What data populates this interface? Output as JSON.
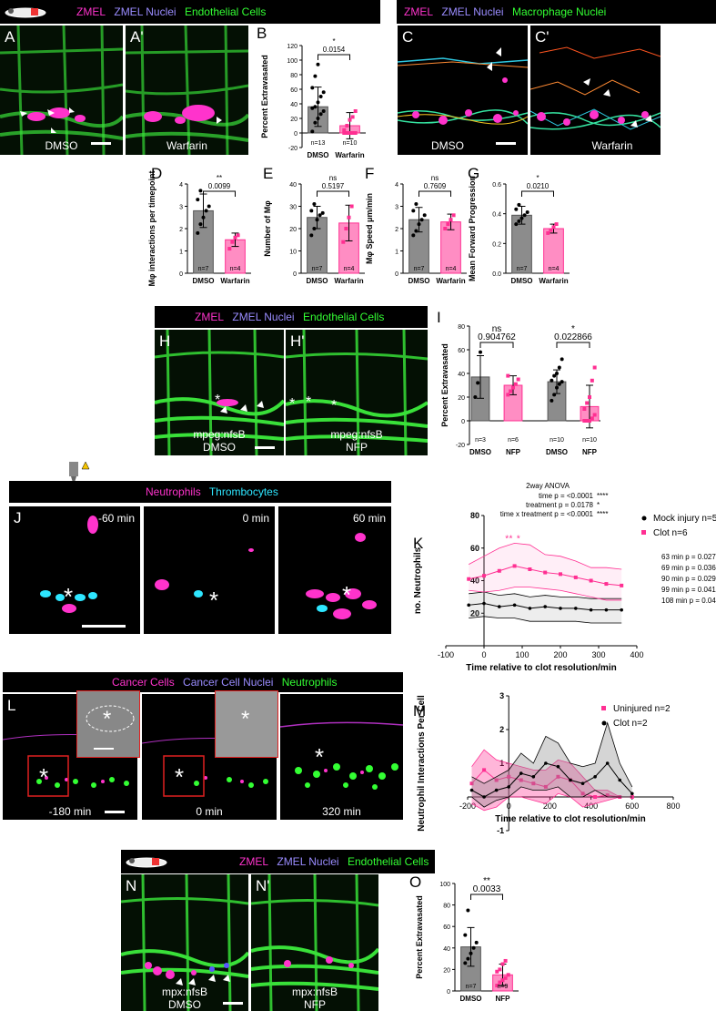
{
  "colors": {
    "grey_bar": "#8c8c8c",
    "pink": "#ff2f92",
    "green_signal": "#33ff33",
    "magenta_signal": "#ff33cc",
    "cyan_signal": "#2ee6ff"
  },
  "icons": [
    "zebrafish-larva-icon",
    "laser-ablation-icon",
    "arrowhead-icon",
    "asterisk-icon",
    "scale-bar-icon"
  ],
  "headers": {
    "top_left": {
      "zmel": "ZMEL",
      "nuclei": "ZMEL Nuclei",
      "cells": "Endothelial Cells"
    },
    "top_right": {
      "zmel": "ZMEL",
      "nuclei": "ZMEL Nuclei",
      "cells": "Macrophage Nuclei"
    },
    "middle": {
      "zmel": "ZMEL",
      "nuclei": "ZMEL Nuclei",
      "cells": "Endothelial Cells"
    },
    "clot": {
      "neutrophils": "Neutrophils",
      "thrombocytes": "Thrombocytes"
    },
    "cancer": {
      "cancer_cells": "Cancer Cells",
      "nuclei": "Cancer Cell Nuclei",
      "neutrophils": "Neutrophils"
    },
    "bottom": {
      "zmel": "ZMEL",
      "nuclei": "ZMEL Nuclei",
      "cells": "Endothelial Cells"
    }
  },
  "panels": {
    "A": {
      "letter": "A",
      "label": "DMSO"
    },
    "A2": {
      "letter": "A'",
      "label": "Warfarin"
    },
    "C": {
      "letter": "C",
      "label": "DMSO"
    },
    "C2": {
      "letter": "C'",
      "label": "Warfarin"
    },
    "H": {
      "letter": "H",
      "label1": "mpeg:nfsB",
      "label2": "DMSO"
    },
    "H2": {
      "letter": "H'",
      "label1": "mpeg:nfsB",
      "label2": "NFP"
    },
    "J1": {
      "letter": "J",
      "time": "-60 min"
    },
    "J2": {
      "time": "0 min"
    },
    "J3": {
      "time": "60 min"
    },
    "L1": {
      "letter": "L",
      "time": "-180 min"
    },
    "L2": {
      "time": "0 min"
    },
    "L3": {
      "time": "320 min"
    },
    "N": {
      "letter": "N",
      "label1": "mpx:nfsB",
      "label2": "DMSO"
    },
    "N2": {
      "letter": "N'",
      "label1": "mpx:nfsB",
      "label2": "NFP"
    }
  },
  "chart_data": [
    {
      "id": "B",
      "letter": "B",
      "type": "bar",
      "categories": [
        "DMSO",
        "Warfarin"
      ],
      "values": [
        36,
        10
      ],
      "error": [
        27,
        18
      ],
      "n_labels": [
        "n=13",
        "n=10"
      ],
      "points": [
        [
          2,
          14,
          20,
          26,
          30,
          34,
          36,
          42,
          50,
          56,
          62,
          78,
          94
        ],
        [
          0,
          0,
          0,
          0,
          0,
          4,
          10,
          18,
          22,
          30
        ]
      ],
      "ylabel": "Percent Extravasated",
      "ylim": [
        -20,
        120
      ],
      "yticks": [
        -20,
        0,
        20,
        40,
        60,
        80,
        100,
        120
      ],
      "sig": {
        "stars": "*",
        "p": "0.0154"
      }
    },
    {
      "id": "D",
      "letter": "D",
      "type": "bar",
      "categories": [
        "DMSO",
        "Warfarin"
      ],
      "values": [
        2.8,
        1.5
      ],
      "error": [
        0.75,
        0.3
      ],
      "n_labels": [
        "n=7",
        "n=4"
      ],
      "points": [
        [
          1.8,
          2.2,
          2.5,
          2.8,
          3.0,
          3.3,
          3.7
        ],
        [
          1.1,
          1.4,
          1.6,
          1.7
        ]
      ],
      "ylabel": "Mφ interactions per timepoint",
      "ylim": [
        0,
        4
      ],
      "yticks": [
        0,
        1,
        2,
        3,
        4
      ],
      "sig": {
        "stars": "**",
        "p": "0.0099"
      }
    },
    {
      "id": "E",
      "letter": "E",
      "type": "bar",
      "categories": [
        "DMSO",
        "Warfarin"
      ],
      "values": [
        25,
        22.5
      ],
      "error": [
        5,
        8
      ],
      "n_labels": [
        "n=7",
        "n=4"
      ],
      "points": [
        [
          17,
          20,
          24,
          26,
          27,
          28,
          31
        ],
        [
          14,
          20,
          25,
          30
        ]
      ],
      "ylabel": "Number of Mφ",
      "ylim": [
        0,
        40
      ],
      "yticks": [
        0,
        10,
        20,
        30,
        40
      ],
      "sig": {
        "stars": "ns",
        "p": "0.5197"
      }
    },
    {
      "id": "F",
      "letter": "F",
      "type": "bar",
      "categories": [
        "DMSO",
        "Warfarin"
      ],
      "values": [
        2.4,
        2.3
      ],
      "error": [
        0.55,
        0.35
      ],
      "n_labels": [
        "n=7",
        "n=4"
      ],
      "points": [
        [
          1.7,
          1.9,
          2.2,
          2.4,
          2.6,
          2.8,
          3.1
        ],
        [
          2.0,
          2.2,
          2.4,
          2.6
        ]
      ],
      "ylabel": "Mφ Speed μm/min",
      "ylim": [
        0,
        4
      ],
      "yticks": [
        0,
        1,
        2,
        3,
        4
      ],
      "sig": {
        "stars": "ns",
        "p": "0.7609"
      }
    },
    {
      "id": "G",
      "letter": "G",
      "type": "bar",
      "categories": [
        "DMSO",
        "Warfarin"
      ],
      "values": [
        0.39,
        0.3
      ],
      "error": [
        0.06,
        0.03
      ],
      "n_labels": [
        "n=7",
        "n=4"
      ],
      "points": [
        [
          0.33,
          0.35,
          0.37,
          0.39,
          0.41,
          0.43,
          0.46
        ],
        [
          0.27,
          0.29,
          0.31,
          0.33
        ]
      ],
      "ylabel": "Mean Forward Progression",
      "ylim": [
        0,
        0.6
      ],
      "yticks": [
        0.0,
        0.2,
        0.4,
        0.6
      ],
      "sig": {
        "stars": "*",
        "p": "0.0210"
      }
    },
    {
      "id": "I",
      "letter": "I",
      "type": "bar",
      "groups": [
        "nfsB -ve",
        "nfsB +ve"
      ],
      "categories": [
        "DMSO",
        "NFP",
        "DMSO",
        "NFP"
      ],
      "values": [
        37,
        30,
        33,
        12
      ],
      "error": [
        18,
        8,
        10,
        18
      ],
      "n_labels": [
        "n=3",
        "n=6",
        "n=10",
        "n=10"
      ],
      "points": [
        [
          20,
          32,
          58
        ],
        [
          22,
          25,
          28,
          31,
          35,
          38
        ],
        [
          17,
          22,
          28,
          31,
          33,
          34,
          38,
          40,
          45,
          52
        ],
        [
          0,
          0,
          0,
          2,
          5,
          10,
          15,
          20,
          34,
          45
        ]
      ],
      "ylabel": "Percent Extravasated",
      "ylim": [
        -20,
        80
      ],
      "yticks": [
        -20,
        0,
        20,
        40,
        60,
        80
      ],
      "sig": [
        {
          "stars": "ns",
          "p": "0.904762"
        },
        {
          "stars": "*",
          "p": "0.022866"
        }
      ]
    },
    {
      "id": "K",
      "letter": "K",
      "type": "line",
      "xlabel": "Time relative to clot resolution/min",
      "ylabel": "no. Neutrophils",
      "xlim": [
        -100,
        400
      ],
      "ylim": [
        0,
        80
      ],
      "xticks": [
        -100,
        0,
        100,
        200,
        300,
        400
      ],
      "yticks": [
        20,
        40,
        60,
        80
      ],
      "series": [
        {
          "name": "Mock injury n=5",
          "x": [
            -40,
            0,
            40,
            80,
            120,
            160,
            200,
            240,
            280,
            320,
            360
          ],
          "y": [
            25,
            26,
            24,
            25,
            23,
            24,
            23,
            23,
            22,
            22,
            22
          ],
          "lower": [
            17,
            18,
            17,
            17,
            15,
            15,
            15,
            15,
            14,
            14,
            14
          ],
          "upper": [
            32,
            33,
            31,
            32,
            30,
            31,
            30,
            30,
            29,
            29,
            29
          ]
        },
        {
          "name": "Clot n=6",
          "x": [
            -40,
            0,
            40,
            80,
            120,
            160,
            200,
            240,
            280,
            320,
            360
          ],
          "y": [
            41,
            43,
            46,
            49,
            47,
            45,
            44,
            42,
            40,
            38,
            37
          ],
          "lower": [
            34,
            33,
            34,
            36,
            36,
            35,
            34,
            32,
            30,
            28,
            28
          ],
          "upper": [
            50,
            55,
            60,
            63,
            62,
            56,
            55,
            52,
            48,
            48,
            47
          ]
        }
      ],
      "stats": {
        "title": "2way ANOVA",
        "rows": [
          {
            "text": "time p = <0.0001",
            "stars": "****"
          },
          {
            "text": "treatment p = 0.0178",
            "stars": "*"
          },
          {
            "text": "time x treatment p = <0.0001",
            "stars": "****"
          }
        ],
        "posthoc": [
          "63 min p = 0.0278",
          "69 min p = 0.0360",
          "90 min p = 0.0294",
          "99 min p = 0.0419",
          "108 min p = 0.0426"
        ]
      }
    },
    {
      "id": "M",
      "letter": "M",
      "type": "line",
      "xlabel": "Time relative to clot resolution/min",
      "ylabel": "Neutrophil Interactions Per Cell",
      "xlim": [
        -200,
        800
      ],
      "ylim": [
        -1,
        3
      ],
      "xticks": [
        -200,
        0,
        200,
        400,
        600,
        800
      ],
      "yticks": [
        -1,
        1,
        2,
        3
      ],
      "series": [
        {
          "name": "Uninjured n=2",
          "x": [
            -180,
            -120,
            -60,
            0,
            60,
            120,
            180,
            240,
            300,
            360,
            420,
            480,
            540,
            600
          ],
          "y": [
            0.4,
            0.8,
            0.5,
            0.6,
            0.5,
            0.4,
            0.3,
            0.6,
            0.5,
            0.1,
            0.0,
            0.05,
            0.0,
            0.0
          ],
          "lower": [
            -0.2,
            -0.4,
            -0.3,
            0.0,
            0.0,
            -0.1,
            -0.2,
            0.1,
            0.0,
            -0.3,
            -0.2,
            -0.1,
            0.0,
            0.0
          ],
          "upper": [
            0.9,
            1.4,
            1.1,
            1.0,
            0.9,
            0.8,
            0.8,
            1.1,
            1.0,
            0.6,
            0.2,
            0.2,
            0.0,
            0.0
          ]
        },
        {
          "name": "Clot n=2",
          "x": [
            -180,
            -120,
            -60,
            0,
            60,
            120,
            180,
            240,
            300,
            360,
            420,
            480,
            540,
            600
          ],
          "y": [
            0.2,
            0.0,
            0.2,
            0.3,
            0.7,
            0.6,
            1.0,
            0.9,
            0.5,
            0.4,
            0.6,
            1.0,
            0.5,
            0.1
          ],
          "lower": [
            0.0,
            -0.3,
            -0.1,
            0.0,
            0.3,
            0.2,
            0.2,
            0.3,
            0.0,
            0.0,
            0.2,
            0.0,
            0.0,
            0.0
          ],
          "upper": [
            0.6,
            0.4,
            0.6,
            0.8,
            1.3,
            1.0,
            1.8,
            1.6,
            1.0,
            0.9,
            1.0,
            2.2,
            1.0,
            0.3
          ]
        }
      ]
    },
    {
      "id": "O",
      "letter": "O",
      "type": "bar",
      "categories": [
        "DMSO",
        "NFP"
      ],
      "values": [
        41,
        15
      ],
      "error": [
        18,
        10
      ],
      "n_labels": [
        "n=7",
        "n=9"
      ],
      "points": [
        [
          26,
          30,
          35,
          40,
          45,
          52,
          75
        ],
        [
          5,
          8,
          10,
          12,
          15,
          18,
          20,
          25,
          28
        ]
      ],
      "ylabel": "Percent Extravasated",
      "ylim": [
        0,
        100
      ],
      "yticks": [
        0,
        20,
        40,
        60,
        80,
        100
      ],
      "sig": {
        "stars": "**",
        "p": "0.0033"
      }
    }
  ]
}
